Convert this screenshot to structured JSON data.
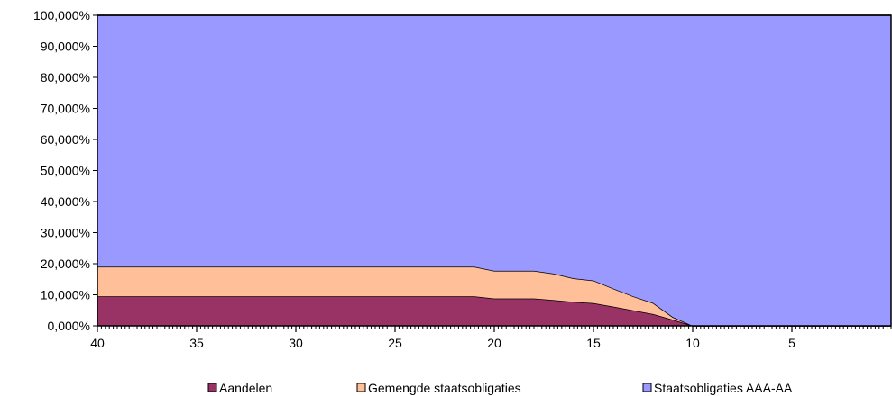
{
  "chart_data": {
    "type": "area",
    "stacked": true,
    "x": [
      40,
      39,
      38,
      37,
      36,
      35,
      34,
      33,
      32,
      31,
      30,
      29,
      28,
      27,
      26,
      25,
      24,
      23,
      22,
      21,
      20,
      19,
      18,
      17,
      16,
      15,
      14,
      13,
      12,
      11,
      10,
      9,
      8,
      7,
      6,
      5,
      4,
      3,
      2,
      1
    ],
    "series": [
      {
        "name": "Aandelen",
        "color": "#993366",
        "values": [
          9.5,
          9.5,
          9.5,
          9.5,
          9.5,
          9.5,
          9.5,
          9.5,
          9.5,
          9.5,
          9.5,
          9.5,
          9.5,
          9.5,
          9.5,
          9.5,
          9.5,
          9.5,
          9.5,
          9.5,
          8.8,
          8.8,
          8.8,
          8.3,
          7.7,
          7.3,
          6.2,
          5.0,
          3.8,
          2.0,
          0,
          0,
          0,
          0,
          0,
          0,
          0,
          0,
          0,
          0
        ]
      },
      {
        "name": "Gemengde staatsobligaties",
        "color": "#FFC099",
        "values": [
          9.5,
          9.5,
          9.5,
          9.5,
          9.5,
          9.5,
          9.5,
          9.5,
          9.5,
          9.5,
          9.5,
          9.5,
          9.5,
          9.5,
          9.5,
          9.5,
          9.5,
          9.5,
          9.5,
          9.5,
          8.9,
          8.9,
          8.9,
          8.5,
          7.6,
          7.3,
          5.8,
          4.5,
          3.6,
          0.8,
          0,
          0,
          0,
          0,
          0,
          0,
          0,
          0,
          0,
          0
        ]
      },
      {
        "name": "Staatsobligaties AAA-AA",
        "color": "#9999FF",
        "values": [
          81.0,
          81.0,
          81.0,
          81.0,
          81.0,
          81.0,
          81.0,
          81.0,
          81.0,
          81.0,
          81.0,
          81.0,
          81.0,
          81.0,
          81.0,
          81.0,
          81.0,
          81.0,
          81.0,
          81.0,
          82.3,
          82.3,
          82.3,
          83.2,
          84.7,
          85.4,
          88.0,
          90.5,
          92.6,
          97.2,
          100,
          100,
          100,
          100,
          100,
          100,
          100,
          100,
          100,
          100
        ]
      }
    ],
    "ylim": [
      0,
      100
    ],
    "yticks": [
      0,
      10,
      20,
      30,
      40,
      50,
      60,
      70,
      80,
      90,
      100
    ],
    "ytick_labels": [
      "0,000%",
      "10,000%",
      "20,000%",
      "30,000%",
      "40,000%",
      "50,000%",
      "60,000%",
      "70,000%",
      "80,000%",
      "90,000%",
      "100,000%"
    ],
    "xticks": [
      40,
      35,
      30,
      25,
      20,
      15,
      10,
      5
    ],
    "xtick_labels": [
      "40",
      "35",
      "30",
      "25",
      "20",
      "15",
      "10",
      "5"
    ],
    "x_reversed": true,
    "grid": false,
    "legend_position": "bottom",
    "title": "",
    "xlabel": "",
    "ylabel": ""
  }
}
